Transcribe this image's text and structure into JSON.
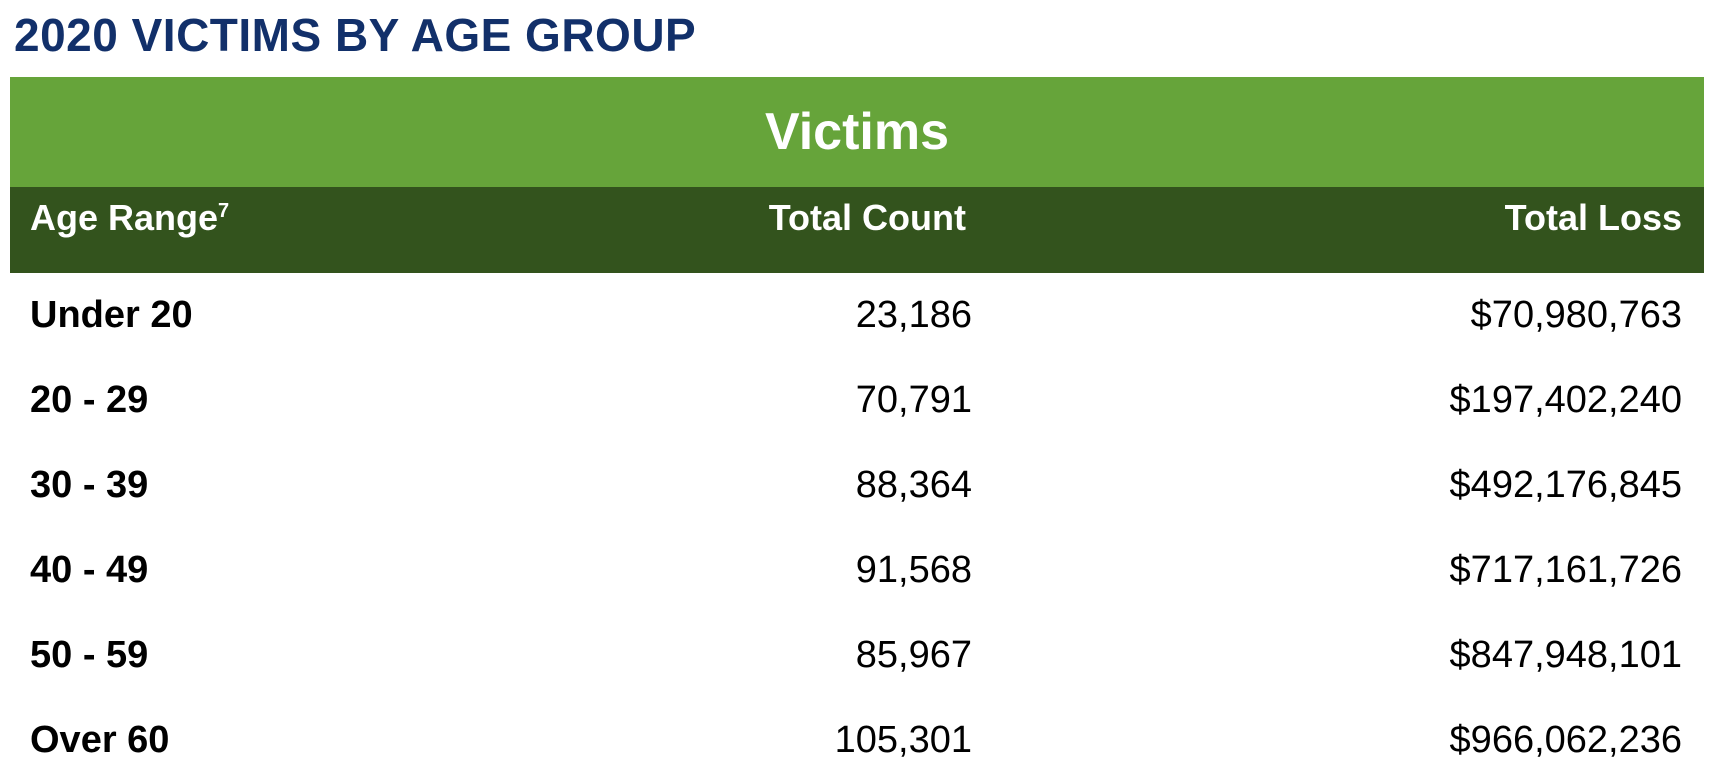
{
  "title": "2020 VICTIMS BY AGE GROUP",
  "table": {
    "banner": "Victims",
    "headers": {
      "age_range": "Age Range",
      "age_range_footnote": "7",
      "total_count": "Total Count",
      "total_loss": "Total Loss"
    },
    "rows": [
      {
        "age_range": "Under 20",
        "total_count": "23,186",
        "total_loss": "$70,980,763"
      },
      {
        "age_range": "20 - 29",
        "total_count": "70,791",
        "total_loss": "$197,402,240"
      },
      {
        "age_range": "30 - 39",
        "total_count": "88,364",
        "total_loss": "$492,176,845"
      },
      {
        "age_range": "40 - 49",
        "total_count": "91,568",
        "total_loss": "$717,161,726"
      },
      {
        "age_range": "50 - 59",
        "total_count": "85,967",
        "total_loss": "$847,948,101"
      },
      {
        "age_range": "Over 60",
        "total_count": "105,301",
        "total_loss": "$966,062,236"
      }
    ]
  },
  "colors": {
    "title": "#12306a",
    "banner": "#66a43a",
    "header": "#33531d"
  }
}
